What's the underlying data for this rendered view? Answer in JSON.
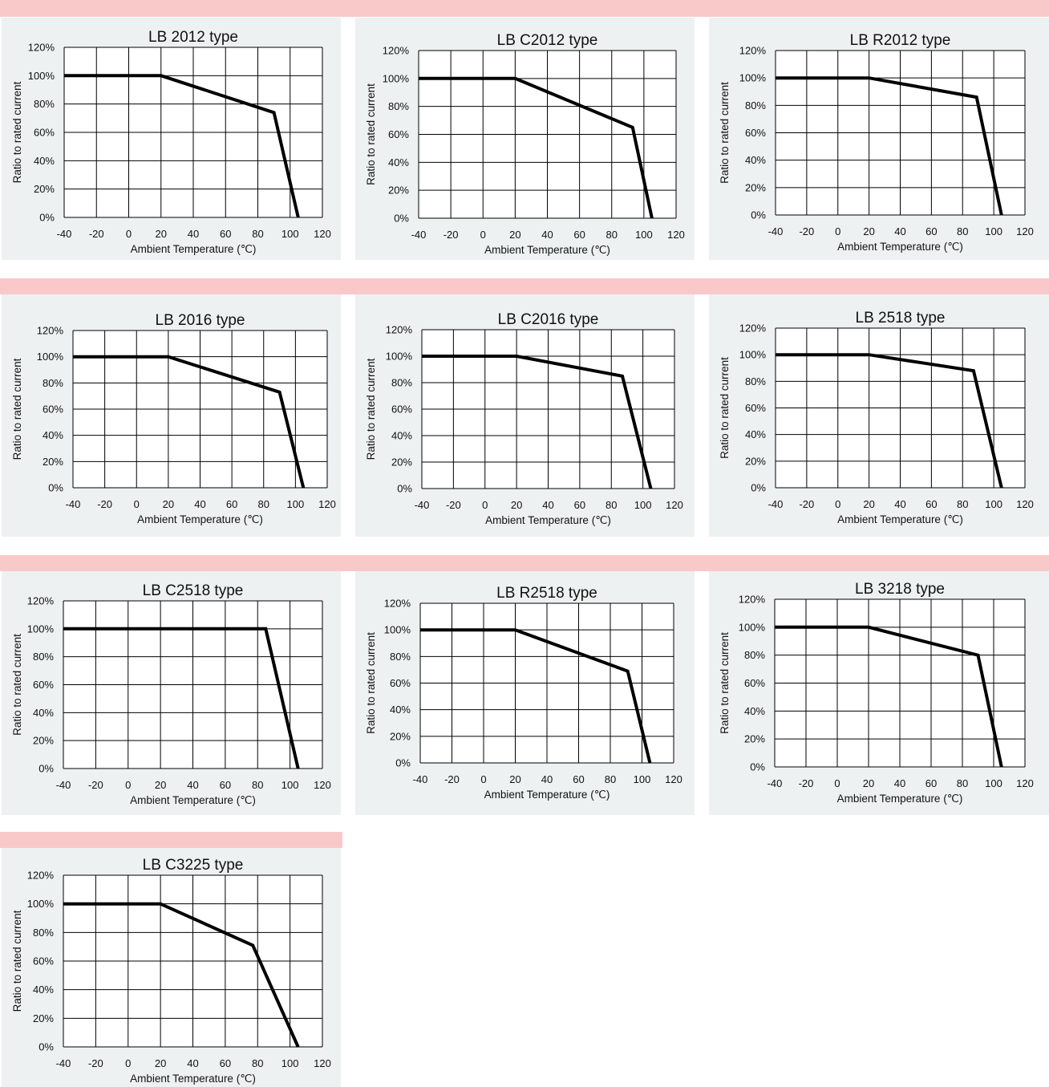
{
  "colors": {
    "band": "#f9c9ca",
    "panel": "#eef1f1",
    "line": "#000000",
    "grid": "#000000"
  },
  "chart_data": [
    {
      "type": "line",
      "title": "LB 2012 type",
      "xlabel": "Ambient  Temperature (℃)",
      "ylabel": "Ratio to rated current",
      "xlim": [
        -40,
        120
      ],
      "ylim": [
        0,
        120
      ],
      "x_ticks": [
        "-40",
        "-20",
        "0",
        "20",
        "40",
        "60",
        "80",
        "100",
        "120"
      ],
      "y_ticks": [
        "0%",
        "20%",
        "40%",
        "60%",
        "80%",
        "100%",
        "120%"
      ],
      "grid": true,
      "series": [
        {
          "x": [
            -40,
            20,
            90,
            105
          ],
          "y": [
            100,
            100,
            74,
            0
          ]
        }
      ]
    },
    {
      "type": "line",
      "title": "LB C2012 type",
      "xlabel": "Ambient  Temperature (℃)",
      "ylabel": "Ratio to rated current",
      "xlim": [
        -40,
        120
      ],
      "ylim": [
        0,
        120
      ],
      "x_ticks": [
        "-40",
        "-20",
        "0",
        "20",
        "40",
        "60",
        "80",
        "100",
        "120"
      ],
      "y_ticks": [
        "0%",
        "20%",
        "40%",
        "60%",
        "80%",
        "100%",
        "120%"
      ],
      "grid": true,
      "series": [
        {
          "x": [
            -40,
            20,
            93,
            105
          ],
          "y": [
            100,
            100,
            65,
            0
          ]
        }
      ]
    },
    {
      "type": "line",
      "title": "LB R2012 type",
      "xlabel": "Ambient  Temperature (℃)",
      "ylabel": "Ratio to rated current",
      "xlim": [
        -40,
        120
      ],
      "ylim": [
        0,
        120
      ],
      "x_ticks": [
        "-40",
        "-20",
        "0",
        "20",
        "40",
        "60",
        "80",
        "100",
        "120"
      ],
      "y_ticks": [
        "0%",
        "20%",
        "40%",
        "60%",
        "80%",
        "100%",
        "120%"
      ],
      "grid": true,
      "series": [
        {
          "x": [
            -40,
            20,
            89,
            105
          ],
          "y": [
            100,
            100,
            86,
            0
          ]
        }
      ]
    },
    {
      "type": "line",
      "title": "LB 2016 type",
      "xlabel": "Ambient  Temperature (℃)",
      "ylabel": "Ratio to rated current",
      "xlim": [
        -40,
        120
      ],
      "ylim": [
        0,
        120
      ],
      "x_ticks": [
        "-40",
        "-20",
        "0",
        "20",
        "40",
        "60",
        "80",
        "100",
        "120"
      ],
      "y_ticks": [
        "0%",
        "20%",
        "40%",
        "60%",
        "80%",
        "100%",
        "120%"
      ],
      "grid": true,
      "series": [
        {
          "x": [
            -40,
            20,
            90,
            105
          ],
          "y": [
            100,
            100,
            73,
            0
          ]
        }
      ]
    },
    {
      "type": "line",
      "title": "LB C2016 type",
      "xlabel": "Ambient  Temperature (℃)",
      "ylabel": "Ratio to rated current",
      "xlim": [
        -40,
        120
      ],
      "ylim": [
        0,
        120
      ],
      "x_ticks": [
        "-40",
        "-20",
        "0",
        "20",
        "40",
        "60",
        "80",
        "100",
        "120"
      ],
      "y_ticks": [
        "0%",
        "20%",
        "40%",
        "60%",
        "80%",
        "100%",
        "120%"
      ],
      "grid": true,
      "series": [
        {
          "x": [
            -40,
            20,
            87,
            105
          ],
          "y": [
            100,
            100,
            85,
            0
          ]
        }
      ]
    },
    {
      "type": "line",
      "title": "LB 2518 type",
      "xlabel": "Ambient  Temperature (℃)",
      "ylabel": "Ratio to rated current",
      "xlim": [
        -40,
        120
      ],
      "ylim": [
        0,
        120
      ],
      "x_ticks": [
        "-40",
        "-20",
        "0",
        "20",
        "40",
        "60",
        "80",
        "100",
        "120"
      ],
      "y_ticks": [
        "0%",
        "20%",
        "40%",
        "60%",
        "80%",
        "100%",
        "120%"
      ],
      "grid": true,
      "series": [
        {
          "x": [
            -40,
            20,
            87,
            105
          ],
          "y": [
            100,
            100,
            88,
            0
          ]
        }
      ]
    },
    {
      "type": "line",
      "title": "LB C2518 type",
      "xlabel": "Ambient  Temperature (℃)",
      "ylabel": "Ratio to rated current",
      "xlim": [
        -40,
        120
      ],
      "ylim": [
        0,
        120
      ],
      "x_ticks": [
        "-40",
        "-20",
        "0",
        "20",
        "40",
        "60",
        "80",
        "100",
        "120"
      ],
      "y_ticks": [
        "0%",
        "20%",
        "40%",
        "60%",
        "80%",
        "100%",
        "120%"
      ],
      "grid": true,
      "series": [
        {
          "x": [
            -40,
            20,
            85,
            105
          ],
          "y": [
            100,
            100,
            100,
            0
          ]
        }
      ]
    },
    {
      "type": "line",
      "title": "LB R2518 type",
      "xlabel": "Ambient  Temperature (℃)",
      "ylabel": "Ratio to rated current",
      "xlim": [
        -40,
        120
      ],
      "ylim": [
        0,
        120
      ],
      "x_ticks": [
        "-40",
        "-20",
        "0",
        "20",
        "40",
        "60",
        "80",
        "100",
        "120"
      ],
      "y_ticks": [
        "0%",
        "20%",
        "40%",
        "60%",
        "80%",
        "100%",
        "120%"
      ],
      "grid": true,
      "series": [
        {
          "x": [
            -40,
            20,
            91,
            105
          ],
          "y": [
            100,
            100,
            69,
            0
          ]
        }
      ]
    },
    {
      "type": "line",
      "title": "LB 3218 type",
      "xlabel": "Ambient  Temperature (℃)",
      "ylabel": "Ratio to rated current",
      "xlim": [
        -40,
        120
      ],
      "ylim": [
        0,
        120
      ],
      "x_ticks": [
        "-40",
        "-20",
        "0",
        "20",
        "40",
        "60",
        "80",
        "100",
        "120"
      ],
      "y_ticks": [
        "0%",
        "20%",
        "40%",
        "60%",
        "80%",
        "100%",
        "120%"
      ],
      "grid": true,
      "series": [
        {
          "x": [
            -40,
            20,
            90,
            105
          ],
          "y": [
            100,
            100,
            80,
            0
          ]
        }
      ]
    },
    {
      "type": "line",
      "title": "LB C3225 type",
      "xlabel": "Ambient  Temperature (℃)",
      "ylabel": "Ratio to rated current",
      "xlim": [
        -40,
        120
      ],
      "ylim": [
        0,
        120
      ],
      "x_ticks": [
        "-40",
        "-20",
        "0",
        "20",
        "40",
        "60",
        "80",
        "100",
        "120"
      ],
      "y_ticks": [
        "0%",
        "20%",
        "40%",
        "60%",
        "80%",
        "100%",
        "120%"
      ],
      "grid": true,
      "series": [
        {
          "x": [
            -40,
            20,
            77,
            105
          ],
          "y": [
            100,
            100,
            71,
            0
          ]
        }
      ]
    }
  ]
}
